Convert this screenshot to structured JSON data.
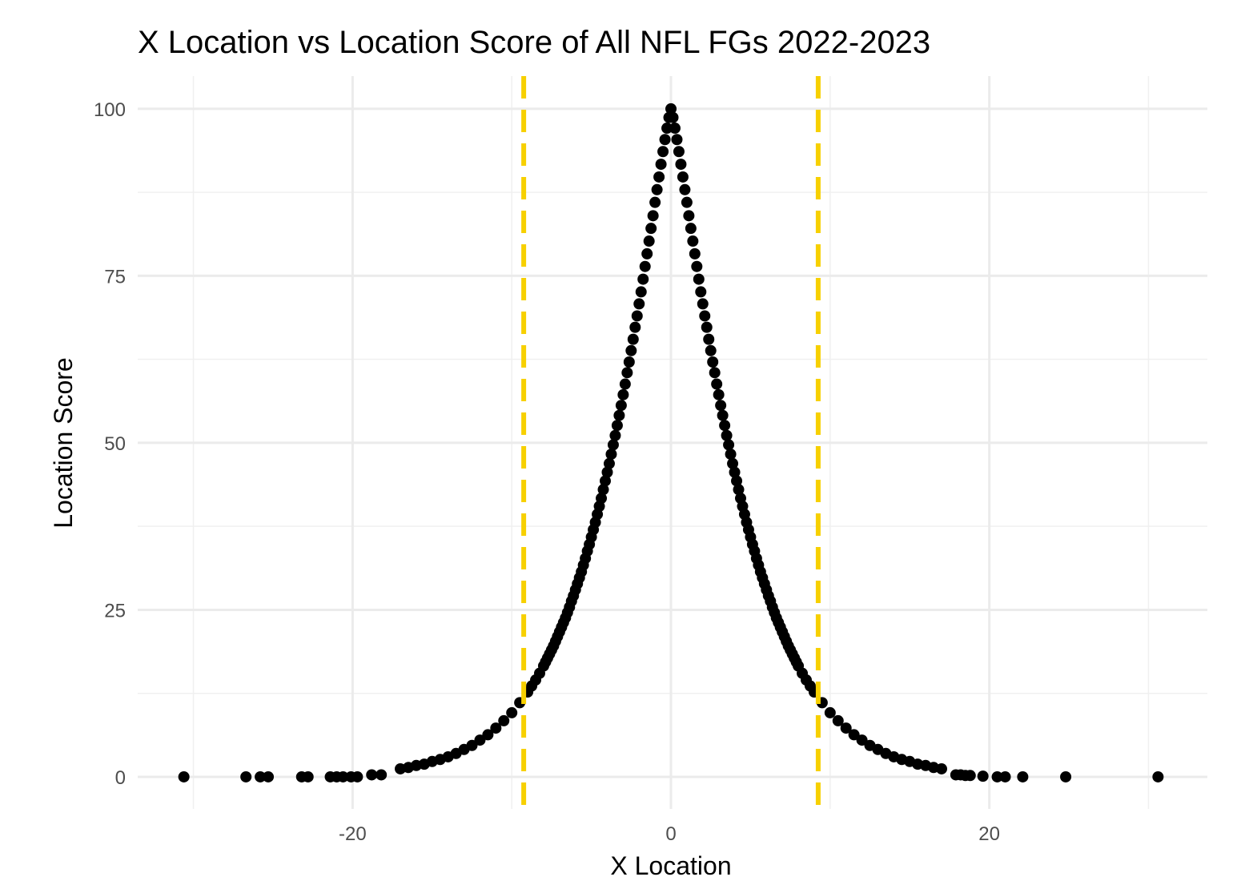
{
  "chart_data": {
    "type": "scatter",
    "title": "X Location vs Location Score of All NFL FGs 2022-2023",
    "x_label": "X Location",
    "y_label": "Location Score",
    "color": "#000000",
    "xlim": [
      -33.5,
      33.7
    ],
    "ylim": [
      -4.8,
      104.9
    ],
    "xticks": [
      -20,
      0,
      20
    ],
    "yticks": [
      0,
      25,
      50,
      75,
      100
    ],
    "xminor": [
      -30,
      -10,
      10,
      30
    ],
    "yminor": [
      12.5,
      37.5,
      62.5,
      87.5
    ],
    "grid": true,
    "vlines": [
      -9.25,
      9.25
    ],
    "vline_color": "#f7d000",
    "vline_dashed": true,
    "x": [
      -30.6,
      -26.7,
      -25.8,
      -25.3,
      -23.2,
      -22.8,
      -21.4,
      -21,
      -20.6,
      -20.1,
      -19.7,
      -18.8,
      -18.2,
      -17,
      -16.5,
      -16,
      -15.5,
      -15,
      -14.5,
      -14,
      -13.5,
      -13,
      -12.5,
      -12,
      -11.5,
      -11,
      -10.5,
      -10,
      -9.5,
      -9,
      -8.75,
      -8.5,
      -8.25,
      -8,
      -7.875,
      -7.75,
      -7.625,
      -7.5,
      -7.375,
      -7.25,
      -7.125,
      -7,
      -6.875,
      -6.75,
      -6.625,
      -6.5,
      -6.375,
      -6.25,
      -6.125,
      -6,
      -5.875,
      -5.75,
      -5.625,
      -5.5,
      -5.375,
      -5.25,
      -5.125,
      -5,
      -4.875,
      -4.75,
      -4.625,
      -4.5,
      -4.375,
      -4.25,
      -4.125,
      -4,
      -3.875,
      -3.75,
      -3.625,
      -3.5,
      -3.375,
      -3.25,
      -3.125,
      -3,
      -2.875,
      -2.75,
      -2.625,
      -2.5,
      -2.375,
      -2.25,
      -2.125,
      -2,
      -1.875,
      -1.75,
      -1.625,
      -1.5,
      -1.375,
      -1.25,
      -1.125,
      -1,
      -0.875,
      -0.75,
      -0.625,
      -0.5,
      -0.375,
      -0.25,
      -0.125,
      0,
      0.125,
      0.25,
      0.375,
      0.5,
      0.625,
      0.75,
      0.875,
      1,
      1.125,
      1.25,
      1.375,
      1.5,
      1.625,
      1.75,
      1.875,
      2,
      2.125,
      2.25,
      2.375,
      2.5,
      2.625,
      2.75,
      2.875,
      3,
      3.125,
      3.25,
      3.375,
      3.5,
      3.625,
      3.75,
      3.875,
      4,
      4.125,
      4.25,
      4.375,
      4.5,
      4.625,
      4.75,
      4.875,
      5,
      5.125,
      5.25,
      5.375,
      5.5,
      5.625,
      5.75,
      5.875,
      6,
      6.125,
      6.25,
      6.375,
      6.5,
      6.625,
      6.75,
      6.875,
      7,
      7.125,
      7.25,
      7.375,
      7.5,
      7.625,
      7.75,
      7.875,
      8,
      8.25,
      8.5,
      8.75,
      9,
      9.5,
      10,
      10.5,
      11,
      11.5,
      12,
      12.5,
      13,
      13.5,
      14,
      14.5,
      15,
      15.5,
      16,
      16.5,
      17,
      17.9,
      18.2,
      18.5,
      18.8,
      19.6,
      20.5,
      21,
      22.1,
      24.8,
      30.6
    ],
    "values": [
      0,
      0,
      0,
      0,
      0,
      0,
      0,
      0,
      0,
      0,
      0,
      0.3,
      0.3,
      1.2,
      1.4,
      1.7,
      1.9,
      2.3,
      2.6,
      3.0,
      3.5,
      4.1,
      4.7,
      5.5,
      6.3,
      7.3,
      8.4,
      9.6,
      11.1,
      12.7,
      13.6,
      14.5,
      15.5,
      16.6,
      17.2,
      17.8,
      18.4,
      19.0,
      19.6,
      20.3,
      21.0,
      21.7,
      22.4,
      23.1,
      23.8,
      24.6,
      25.4,
      26.3,
      27.1,
      28.0,
      28.9,
      29.8,
      30.7,
      31.7,
      32.7,
      33.8,
      34.8,
      35.9,
      37.0,
      38.1,
      39.3,
      40.5,
      41.7,
      43.0,
      44.3,
      45.6,
      46.9,
      48.3,
      49.7,
      51.1,
      52.6,
      54.1,
      55.6,
      57.2,
      58.8,
      60.5,
      62.1,
      63.8,
      65.5,
      67.3,
      69.0,
      70.8,
      72.6,
      74.5,
      76.4,
      78.3,
      80.2,
      82.1,
      84.0,
      86.0,
      87.9,
      89.8,
      91.7,
      93.6,
      95.4,
      97.1,
      98.7,
      100,
      98.7,
      97.1,
      95.4,
      93.6,
      91.7,
      89.8,
      87.9,
      86.0,
      84.0,
      82.1,
      80.2,
      78.3,
      76.4,
      74.5,
      72.6,
      70.8,
      69.0,
      67.3,
      65.5,
      63.8,
      62.1,
      60.5,
      58.8,
      57.2,
      55.6,
      54.1,
      52.6,
      51.1,
      49.7,
      48.3,
      46.9,
      45.6,
      44.3,
      43.0,
      41.7,
      40.5,
      39.3,
      38.1,
      37.0,
      35.9,
      34.8,
      33.8,
      32.7,
      31.7,
      30.7,
      29.8,
      28.9,
      28.0,
      27.1,
      26.3,
      25.4,
      24.6,
      23.8,
      23.1,
      22.4,
      21.7,
      21.0,
      20.3,
      19.6,
      19.0,
      18.4,
      17.8,
      17.2,
      16.6,
      15.5,
      14.5,
      13.6,
      12.7,
      11.1,
      9.6,
      8.4,
      7.3,
      6.3,
      5.5,
      4.7,
      4.1,
      3.5,
      3.0,
      2.6,
      2.3,
      1.9,
      1.7,
      1.4,
      1.2,
      0.3,
      0.3,
      0.2,
      0.2,
      0.1,
      0,
      0,
      0,
      0,
      0
    ]
  }
}
